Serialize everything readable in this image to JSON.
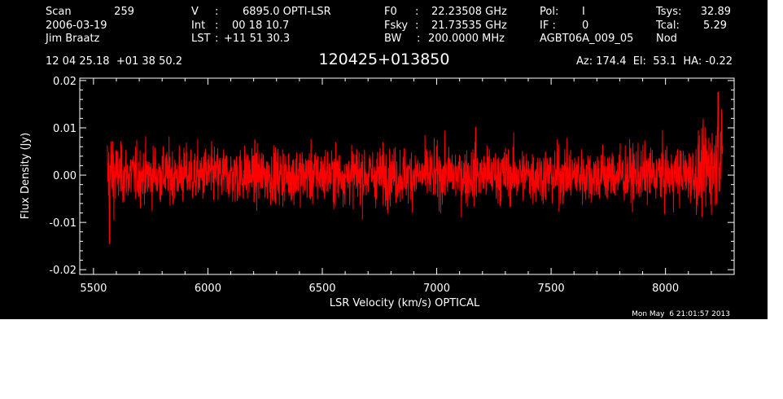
{
  "header": {
    "col1": [
      {
        "label": "Scan",
        "value": "259"
      },
      {
        "label": "2006-03-19",
        "value": ""
      },
      {
        "label": "Jim Braatz",
        "value": ""
      }
    ],
    "col2": [
      {
        "label": "V",
        "sep": ":",
        "value": "6895.0 OPTI-LSR"
      },
      {
        "label": "Int",
        "sep": ":",
        "value": "00 18 10.7"
      },
      {
        "label": "LST",
        "sep": ":",
        "value": "+11 51 30.3"
      }
    ],
    "col3": [
      {
        "label": "F0",
        "sep": ":",
        "value": "22.23508 GHz"
      },
      {
        "label": "Fsky",
        "sep": ":",
        "value": "21.73535 GHz"
      },
      {
        "label": "BW",
        "sep": ":",
        "value": "200.0000 MHz"
      }
    ],
    "col4": [
      {
        "label": "Pol:",
        "value": "I"
      },
      {
        "label": "IF :",
        "value": "0"
      },
      {
        "label": "AGBT06A_009_05",
        "value": ""
      }
    ],
    "col5": [
      {
        "label": "Tsys:",
        "value": "32.89"
      },
      {
        "label": "Tcal:",
        "value": "5.29"
      },
      {
        "label": "Nod",
        "value": ""
      }
    ],
    "coords": "12 04 25.18  +01 38 50.2",
    "source": "120425+013850",
    "pointing": "Az: 174.4  El:  53.1  HA: -0.22",
    "timestamp": "Mon May  6 21:01:57 2013"
  },
  "colors": {
    "background": "#000000",
    "foreground": "#ffffff",
    "series": "#ff0000"
  },
  "chart_data": {
    "type": "line",
    "title": "120425+013850",
    "xlabel": "LSR Velocity (km/s) OPTICAL",
    "ylabel": "Flux Density (Jy)",
    "xlim": [
      5440,
      8300
    ],
    "ylim": [
      -0.021,
      0.0205
    ],
    "xticks": [
      5500,
      6000,
      6500,
      7000,
      7500,
      8000
    ],
    "xtick_labels": [
      "5500",
      "6000",
      "6500",
      "7000",
      "7500",
      "8000"
    ],
    "yticks": [
      -0.02,
      -0.01,
      0.0,
      0.01,
      0.02
    ],
    "ytick_labels": [
      "-0.02",
      "-0.01",
      "0.00",
      "0.01",
      "0.02"
    ],
    "grid": false,
    "series": [
      {
        "color": "#ff0000",
        "x_range": [
          5560,
          8250
        ],
        "noise_rms": 0.0033,
        "features": [
          {
            "x": 5570,
            "y": -0.0145,
            "note": "negative edge spike"
          },
          {
            "x": 7170,
            "y": 0.0101
          },
          {
            "x": 8230,
            "y": 0.0175,
            "note": "positive edge spike"
          }
        ]
      }
    ]
  }
}
